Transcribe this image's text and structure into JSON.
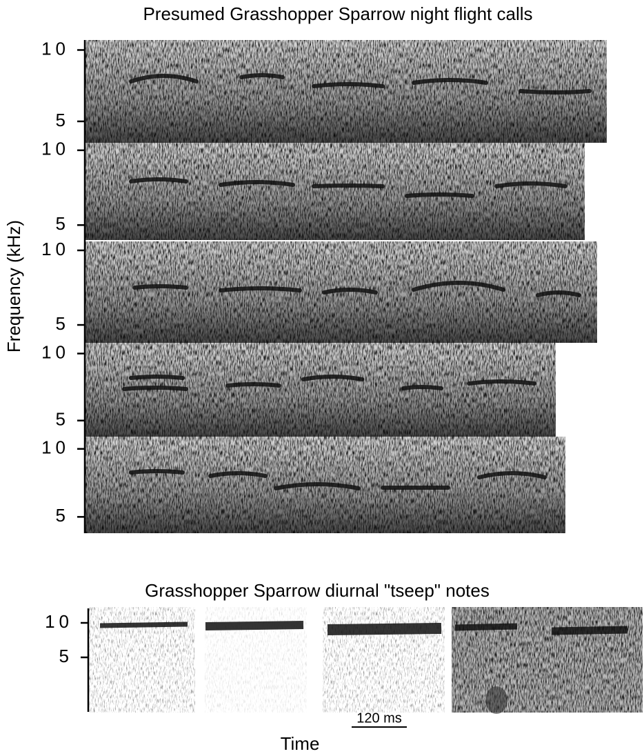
{
  "chart_data": [
    {
      "type": "spectrogram",
      "title": "Presumed Grasshopper Sparrow night flight calls",
      "ylabel": "Frequency (kHz)",
      "panels": [
        {
          "ylim": [
            3.5,
            10.7
          ],
          "yticks": [
            5,
            10
          ]
        },
        {
          "ylim": [
            4.0,
            10.5
          ],
          "yticks": [
            5,
            10
          ]
        },
        {
          "ylim": [
            3.8,
            10.6
          ],
          "yticks": [
            5,
            10
          ]
        },
        {
          "ylim": [
            3.8,
            10.8
          ],
          "yticks": [
            5,
            10
          ]
        },
        {
          "ylim": [
            3.8,
            10.9
          ],
          "yticks": [
            5,
            10
          ]
        }
      ]
    },
    {
      "type": "spectrogram",
      "title": "Grasshopper Sparrow diurnal \"tseep\" notes",
      "xlabel": "Time",
      "scale_bar": {
        "value": 120,
        "label": "120 ms"
      },
      "panels": [
        {
          "ylim": [
            -3,
            12.3
          ],
          "yticks": [
            5,
            10
          ]
        }
      ]
    }
  ]
}
